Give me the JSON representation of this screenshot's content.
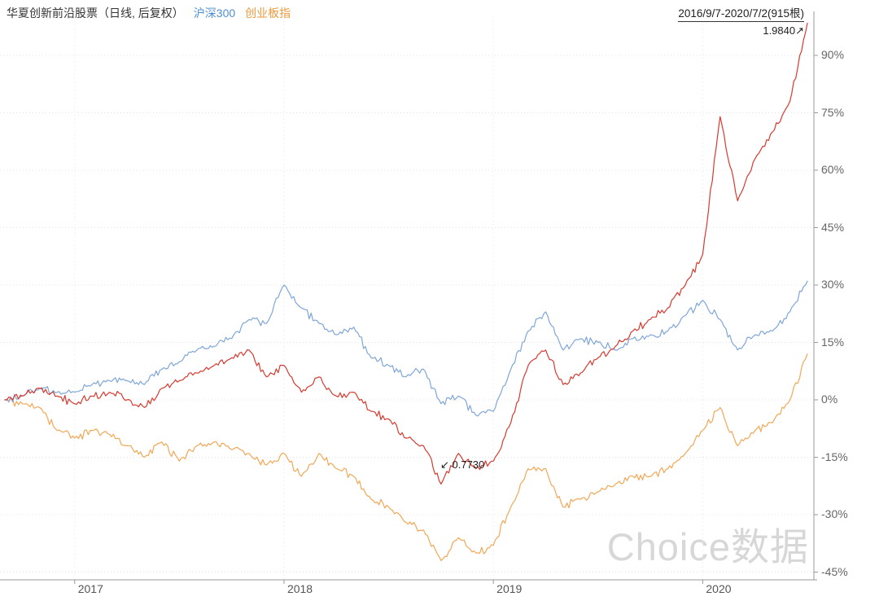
{
  "header": {
    "title": "华夏创新前沿股票（日线, 后复权）",
    "date_range": "2016/9/7-2020/7/2(915根)"
  },
  "watermark": "Choice数据",
  "annotations": {
    "max_label": "1.9840↗",
    "min_label": "↙ 0.7730"
  },
  "chart_data": {
    "type": "line",
    "title": "华夏创新前沿股票（日线, 后复权）",
    "subtitle": "",
    "x_unit": "months from 2016-09 to 2020-07 (daily data shown, 915 bars)",
    "series": [
      {
        "name": "华夏创新前沿股票",
        "color": "#d63a30",
        "values": [
          0,
          1,
          3,
          1,
          -1,
          1,
          2,
          0,
          -2,
          3,
          5,
          7,
          9,
          11,
          13,
          6,
          9,
          2,
          6,
          1,
          2,
          -3,
          -5,
          -10,
          -12,
          -22,
          -14,
          -18,
          -16,
          -6,
          9,
          13,
          4,
          7,
          11,
          14,
          18,
          21,
          24,
          30,
          38,
          74,
          52,
          63,
          70,
          78,
          98.4
        ]
      },
      {
        "name": "沪深300",
        "color": "#7fa6d8",
        "values": [
          0,
          1,
          3,
          2,
          2,
          4,
          5,
          5,
          4,
          8,
          10,
          13,
          14,
          16,
          21,
          20,
          30,
          24,
          20,
          17,
          19,
          11,
          9,
          6,
          8,
          -1,
          1,
          -4,
          -3,
          8,
          18,
          23,
          13,
          16,
          15,
          13,
          16,
          17,
          18,
          22,
          26,
          21,
          13,
          17,
          18,
          23,
          31
        ]
      },
      {
        "name": "创业板指",
        "color": "#f2a756",
        "values": [
          0,
          -1,
          -2,
          -8,
          -10,
          -8,
          -9,
          -12,
          -15,
          -11,
          -16,
          -12,
          -11,
          -13,
          -14,
          -17,
          -14,
          -20,
          -14,
          -18,
          -20,
          -26,
          -28,
          -32,
          -34,
          -42,
          -36,
          -40,
          -38,
          -28,
          -18,
          -18,
          -28,
          -26,
          -24,
          -22,
          -20,
          -20,
          -18,
          -14,
          -8,
          -2,
          -12,
          -8,
          -6,
          0,
          12
        ]
      }
    ],
    "y_ticks": {
      "labels": [
        "90%",
        "75%",
        "60%",
        "45%",
        "30%",
        "15%",
        "0%",
        "-15%",
        "-30%",
        "-45%"
      ],
      "values": [
        90,
        75,
        60,
        45,
        30,
        15,
        0,
        -15,
        -30,
        -45
      ]
    },
    "x_ticks": {
      "labels": [
        "2017",
        "2018",
        "2019",
        "2020"
      ],
      "t": [
        4,
        16,
        28,
        40
      ]
    },
    "ylim": [
      -47,
      100
    ],
    "grid": true,
    "legend_position": "top-left",
    "extremes": {
      "max_value": 1.984,
      "min_value": 0.773
    }
  }
}
